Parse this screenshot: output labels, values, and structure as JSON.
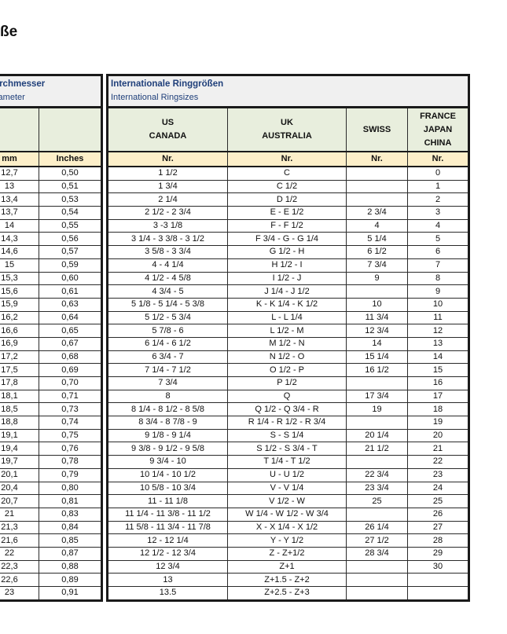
{
  "page_title": "ße",
  "left_table": {
    "title": "ndurchmesser",
    "subtitle": "e Diameter",
    "units": [
      "mm",
      "Inches"
    ],
    "rows": [
      [
        "12,7",
        "0,50"
      ],
      [
        "13",
        "0,51"
      ],
      [
        "13,4",
        "0,53"
      ],
      [
        "13,7",
        "0,54"
      ],
      [
        "14",
        "0,55"
      ],
      [
        "14,3",
        "0,56"
      ],
      [
        "14,6",
        "0,57"
      ],
      [
        "15",
        "0,59"
      ],
      [
        "15,3",
        "0,60"
      ],
      [
        "15,6",
        "0,61"
      ],
      [
        "15,9",
        "0,63"
      ],
      [
        "16,2",
        "0,64"
      ],
      [
        "16,6",
        "0,65"
      ],
      [
        "16,9",
        "0,67"
      ],
      [
        "17,2",
        "0,68"
      ],
      [
        "17,5",
        "0,69"
      ],
      [
        "17,8",
        "0,70"
      ],
      [
        "18,1",
        "0,71"
      ],
      [
        "18,5",
        "0,73"
      ],
      [
        "18,8",
        "0,74"
      ],
      [
        "19,1",
        "0,75"
      ],
      [
        "19,4",
        "0,76"
      ],
      [
        "19,7",
        "0,78"
      ],
      [
        "20,1",
        "0,79"
      ],
      [
        "20,4",
        "0,80"
      ],
      [
        "20,7",
        "0,81"
      ],
      [
        "21",
        "0,83"
      ],
      [
        "21,3",
        "0,84"
      ],
      [
        "21,6",
        "0,85"
      ],
      [
        "22",
        "0,87"
      ],
      [
        "22,3",
        "0,88"
      ],
      [
        "22,6",
        "0,89"
      ],
      [
        "23",
        "0,91"
      ]
    ]
  },
  "right_table": {
    "title": "Internationale Ringgrößen",
    "subtitle": "International Ringsizes",
    "columns": [
      [
        "US",
        "CANADA"
      ],
      [
        "UK",
        "AUSTRALIA"
      ],
      [
        "SWISS"
      ],
      [
        "FRANCE",
        "JAPAN",
        "CHINA"
      ]
    ],
    "units": [
      "Nr.",
      "Nr.",
      "Nr.",
      "Nr."
    ],
    "rows": [
      [
        "1 1/2",
        "C",
        "",
        "0"
      ],
      [
        "1 3/4",
        "C 1/2",
        "",
        "1"
      ],
      [
        "2 1/4",
        "D 1/2",
        "",
        "2"
      ],
      [
        "2 1/2 - 2 3/4",
        "E - E 1/2",
        "2 3/4",
        "3"
      ],
      [
        "3 -3 1/8",
        "F - F 1/2",
        "4",
        "4"
      ],
      [
        "3 1/4 - 3 3/8 - 3 1/2",
        "F 3/4 - G - G 1/4",
        "5 1/4",
        "5"
      ],
      [
        "3 5/8 - 3 3/4",
        "G 1/2 - H",
        "6 1/2",
        "6"
      ],
      [
        "4 - 4 1/4",
        "H 1/2 - I",
        "7 3/4",
        "7"
      ],
      [
        "4 1/2  - 4 5/8",
        "I 1/2 - J",
        "9",
        "8"
      ],
      [
        "4 3/4 - 5",
        "J 1/4 - J 1/2",
        "",
        "9"
      ],
      [
        "5 1/8  - 5 1/4 - 5 3/8",
        "K - K 1/4 - K 1/2",
        "10",
        "10"
      ],
      [
        "5 1/2 - 5 3/4",
        "L - L 1/4",
        "11 3/4",
        "11"
      ],
      [
        "5 7/8 - 6",
        "L 1/2 - M",
        "12 3/4",
        "12"
      ],
      [
        "6 1/4 - 6 1/2",
        "M 1/2 - N",
        "14",
        "13"
      ],
      [
        "6 3/4 - 7",
        "N 1/2 - O",
        "15 1/4",
        "14"
      ],
      [
        "7 1/4 - 7 1/2",
        "O 1/2 - P",
        "16 1/2",
        "15"
      ],
      [
        "7 3/4",
        "P 1/2",
        "",
        "16"
      ],
      [
        "8",
        "Q",
        "17 3/4",
        "17"
      ],
      [
        "8 1/4 - 8 1/2 - 8 5/8",
        "Q 1/2  - Q 3/4 - R",
        "19",
        "18"
      ],
      [
        "8 3/4 - 8 7/8 - 9",
        "R 1/4 - R 1/2 - R 3/4",
        "",
        "19"
      ],
      [
        "9 1/8 - 9 1/4",
        "S - S 1/4",
        "20 1/4",
        "20"
      ],
      [
        "9 3/8 - 9 1/2 - 9 5/8",
        "S 1/2 - S 3/4 - T",
        "21 1/2",
        "21"
      ],
      [
        "9 3/4 - 10",
        "T 1/4 - T 1/2",
        "",
        "22"
      ],
      [
        "10 1/4 - 10 1/2",
        "U - U 1/2",
        "22 3/4",
        "23"
      ],
      [
        "10 5/8 - 10 3/4",
        "V - V 1/4",
        "23 3/4",
        "24"
      ],
      [
        "11 - 11 1/8",
        "V 1/2 - W",
        "25",
        "25"
      ],
      [
        "11 1/4 - 11 3/8 - 11 1/2",
        "W 1/4 - W 1/2 - W 3/4",
        "",
        "26"
      ],
      [
        "11 5/8 - 11 3/4 - 11 7/8",
        "X - X 1/4 - X 1/2",
        "26 1/4",
        "27"
      ],
      [
        "12 - 12 1/4",
        "Y - Y 1/2",
        "27 1/2",
        "28"
      ],
      [
        "12 1/2 - 12 3/4",
        "Z - Z+1/2",
        "28 3/4",
        "29"
      ],
      [
        "12 3/4",
        "Z+1",
        "",
        "30"
      ],
      [
        "13",
        "Z+1.5 - Z+2",
        "",
        ""
      ],
      [
        "13.5",
        "Z+2.5 - Z+3",
        "",
        ""
      ]
    ]
  }
}
